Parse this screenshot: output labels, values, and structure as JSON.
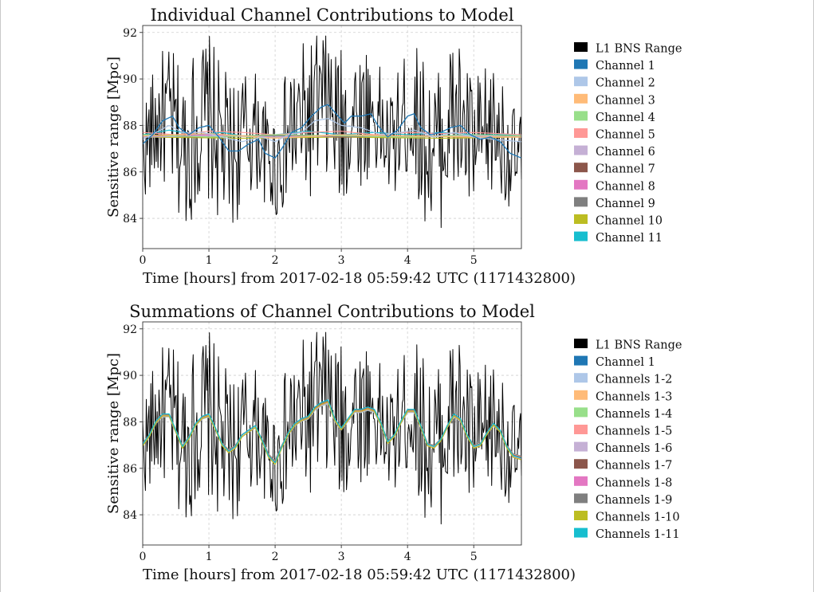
{
  "chart_data": [
    {
      "type": "line",
      "title": "Individual Channel Contributions to Model",
      "xlabel": "Time [hours] from 2017-02-18 05:59:42 UTC (1171432800)",
      "ylabel": "Sensitive range [Mpc]",
      "xlim": [
        0,
        5.72
      ],
      "ylim": [
        82.7,
        92.3
      ],
      "xticks": [
        0,
        1,
        2,
        3,
        4,
        5
      ],
      "yticks": [
        84,
        86,
        88,
        90,
        92
      ],
      "grid": true,
      "legend_position": "right",
      "baseline": 87.55,
      "series": [
        {
          "name": "L1 BNS Range",
          "color": "#000000"
        },
        {
          "name": "Channel 1",
          "color": "#1f77b4",
          "points": [
            [
              0,
              87.2
            ],
            [
              0.15,
              87.6
            ],
            [
              0.3,
              88.2
            ],
            [
              0.45,
              88.4
            ],
            [
              0.55,
              87.9
            ],
            [
              0.7,
              87.6
            ],
            [
              0.85,
              87.9
            ],
            [
              1.0,
              88.0
            ],
            [
              1.15,
              87.5
            ],
            [
              1.3,
              86.9
            ],
            [
              1.45,
              86.9
            ],
            [
              1.6,
              87.2
            ],
            [
              1.75,
              87.4
            ],
            [
              1.85,
              86.8
            ],
            [
              2.0,
              86.6
            ],
            [
              2.1,
              87.0
            ],
            [
              2.25,
              87.7
            ],
            [
              2.4,
              87.9
            ],
            [
              2.55,
              88.4
            ],
            [
              2.7,
              88.8
            ],
            [
              2.8,
              88.9
            ],
            [
              2.95,
              88.4
            ],
            [
              3.05,
              88.1
            ],
            [
              3.15,
              88.4
            ],
            [
              3.3,
              88.4
            ],
            [
              3.45,
              88.5
            ],
            [
              3.55,
              88.0
            ],
            [
              3.7,
              87.5
            ],
            [
              3.85,
              87.8
            ],
            [
              4.0,
              88.4
            ],
            [
              4.1,
              88.5
            ],
            [
              4.2,
              87.9
            ],
            [
              4.35,
              87.6
            ],
            [
              4.5,
              87.7
            ],
            [
              4.65,
              87.9
            ],
            [
              4.8,
              88.0
            ],
            [
              4.95,
              87.6
            ],
            [
              5.1,
              87.4
            ],
            [
              5.25,
              87.5
            ],
            [
              5.4,
              87.3
            ],
            [
              5.55,
              86.8
            ],
            [
              5.72,
              86.6
            ]
          ]
        },
        {
          "name": "Channel 2",
          "color": "#aec7e8",
          "points": [
            [
              0,
              87.4
            ],
            [
              0.2,
              87.7
            ],
            [
              0.4,
              88.0
            ],
            [
              0.6,
              87.7
            ],
            [
              0.9,
              87.7
            ],
            [
              1.2,
              87.5
            ],
            [
              1.5,
              87.3
            ],
            [
              1.8,
              87.5
            ],
            [
              2.0,
              87.3
            ],
            [
              2.2,
              87.6
            ],
            [
              2.4,
              87.7
            ],
            [
              2.6,
              88.2
            ],
            [
              2.8,
              88.3
            ],
            [
              3.0,
              88.0
            ],
            [
              3.3,
              87.9
            ],
            [
              3.6,
              87.6
            ],
            [
              3.9,
              87.7
            ],
            [
              4.1,
              87.8
            ],
            [
              4.4,
              87.5
            ],
            [
              4.7,
              87.7
            ],
            [
              5.0,
              87.5
            ],
            [
              5.3,
              87.4
            ],
            [
              5.72,
              87.3
            ]
          ]
        },
        {
          "name": "Channel 3",
          "color": "#ffbb78",
          "points": [
            [
              0,
              87.55
            ],
            [
              1.0,
              87.65
            ],
            [
              2.0,
              87.45
            ],
            [
              3.0,
              87.6
            ],
            [
              4.0,
              87.55
            ],
            [
              5.0,
              87.5
            ],
            [
              5.72,
              87.5
            ]
          ]
        },
        {
          "name": "Channel 4",
          "color": "#98df8a",
          "points": [
            [
              0,
              87.6
            ],
            [
              1.0,
              87.5
            ],
            [
              2.0,
              87.6
            ],
            [
              3.0,
              87.55
            ],
            [
              4.0,
              87.5
            ],
            [
              5.0,
              87.6
            ],
            [
              5.72,
              87.55
            ]
          ]
        },
        {
          "name": "Channel 5",
          "color": "#ff9896",
          "points": [
            [
              0,
              87.7
            ],
            [
              0.5,
              87.6
            ],
            [
              1.0,
              87.75
            ],
            [
              1.5,
              87.7
            ],
            [
              2.0,
              87.6
            ],
            [
              2.5,
              87.7
            ],
            [
              3.0,
              87.75
            ],
            [
              3.5,
              87.6
            ],
            [
              4.0,
              87.7
            ],
            [
              4.5,
              87.65
            ],
            [
              5.0,
              87.7
            ],
            [
              5.72,
              87.6
            ]
          ]
        },
        {
          "name": "Channel 6",
          "color": "#c5b0d5",
          "points": [
            [
              0,
              87.5
            ],
            [
              1.0,
              87.55
            ],
            [
              2.0,
              87.5
            ],
            [
              3.0,
              87.55
            ],
            [
              4.0,
              87.5
            ],
            [
              5.0,
              87.55
            ],
            [
              5.72,
              87.5
            ]
          ]
        },
        {
          "name": "Channel 7",
          "color": "#8c564b",
          "points": [
            [
              0,
              87.55
            ],
            [
              1.0,
              87.5
            ],
            [
              2.0,
              87.6
            ],
            [
              3.0,
              87.5
            ],
            [
              4.0,
              87.55
            ],
            [
              5.0,
              87.5
            ],
            [
              5.72,
              87.55
            ]
          ]
        },
        {
          "name": "Channel 8",
          "color": "#e377c2",
          "points": [
            [
              0,
              87.5
            ],
            [
              1.0,
              87.6
            ],
            [
              2.0,
              87.5
            ],
            [
              3.0,
              87.6
            ],
            [
              4.0,
              87.5
            ],
            [
              5.0,
              87.6
            ],
            [
              5.72,
              87.5
            ]
          ]
        },
        {
          "name": "Channel 9",
          "color": "#7f7f7f",
          "points": [
            [
              0,
              87.55
            ],
            [
              2.0,
              87.55
            ],
            [
              4.0,
              87.55
            ],
            [
              5.72,
              87.55
            ]
          ]
        },
        {
          "name": "Channel 10",
          "color": "#bcbd22",
          "points": [
            [
              0,
              87.5
            ],
            [
              1.5,
              87.45
            ],
            [
              3.0,
              87.5
            ],
            [
              4.5,
              87.45
            ],
            [
              5.72,
              87.5
            ]
          ]
        },
        {
          "name": "Channel 11",
          "color": "#17becf",
          "points": [
            [
              0,
              87.6
            ],
            [
              0.4,
              87.8
            ],
            [
              0.8,
              87.6
            ],
            [
              1.2,
              87.7
            ],
            [
              1.6,
              87.5
            ],
            [
              2.0,
              87.6
            ],
            [
              2.5,
              87.75
            ],
            [
              3.0,
              87.6
            ],
            [
              3.5,
              87.7
            ],
            [
              4.0,
              87.6
            ],
            [
              4.5,
              87.7
            ],
            [
              5.0,
              87.6
            ],
            [
              5.72,
              87.6
            ]
          ]
        }
      ]
    },
    {
      "type": "line",
      "title": "Summations of Channel Contributions to Model",
      "xlabel": "Time [hours] from 2017-02-18 05:59:42 UTC (1171432800)",
      "ylabel": "Sensitive range [Mpc]",
      "xlim": [
        0,
        5.72
      ],
      "ylim": [
        82.7,
        92.3
      ],
      "xticks": [
        0,
        1,
        2,
        3,
        4,
        5
      ],
      "yticks": [
        84,
        86,
        88,
        90,
        92
      ],
      "grid": true,
      "legend_position": "right",
      "series": [
        {
          "name": "L1 BNS Range",
          "color": "#000000"
        },
        {
          "name": "Channel 1",
          "color": "#1f77b4"
        },
        {
          "name": "Channels 1-2",
          "color": "#aec7e8"
        },
        {
          "name": "Channels 1-3",
          "color": "#ffbb78"
        },
        {
          "name": "Channels 1-4",
          "color": "#98df8a"
        },
        {
          "name": "Channels 1-5",
          "color": "#ff9896"
        },
        {
          "name": "Channels 1-6",
          "color": "#c5b0d5"
        },
        {
          "name": "Channels 1-7",
          "color": "#8c564b"
        },
        {
          "name": "Channels 1-8",
          "color": "#e377c2"
        },
        {
          "name": "Channels 1-9",
          "color": "#7f7f7f"
        },
        {
          "name": "Channels 1-10",
          "color": "#bcbd22"
        },
        {
          "name": "Channels 1-11",
          "color": "#17becf"
        }
      ],
      "model_points": [
        [
          0,
          87.0
        ],
        [
          0.1,
          87.4
        ],
        [
          0.2,
          88.0
        ],
        [
          0.3,
          88.3
        ],
        [
          0.4,
          88.3
        ],
        [
          0.5,
          87.6
        ],
        [
          0.6,
          86.9
        ],
        [
          0.7,
          87.3
        ],
        [
          0.8,
          87.9
        ],
        [
          0.9,
          88.2
        ],
        [
          1.0,
          88.3
        ],
        [
          1.1,
          87.7
        ],
        [
          1.2,
          87.0
        ],
        [
          1.3,
          86.7
        ],
        [
          1.4,
          86.9
        ],
        [
          1.5,
          87.4
        ],
        [
          1.6,
          87.6
        ],
        [
          1.7,
          87.8
        ],
        [
          1.8,
          87.2
        ],
        [
          1.9,
          86.5
        ],
        [
          2.0,
          86.2
        ],
        [
          2.1,
          86.9
        ],
        [
          2.2,
          87.5
        ],
        [
          2.3,
          87.9
        ],
        [
          2.4,
          88.1
        ],
        [
          2.5,
          88.2
        ],
        [
          2.6,
          88.6
        ],
        [
          2.7,
          88.8
        ],
        [
          2.8,
          88.9
        ],
        [
          2.9,
          88.1
        ],
        [
          3.0,
          87.7
        ],
        [
          3.1,
          88.1
        ],
        [
          3.2,
          88.5
        ],
        [
          3.3,
          88.5
        ],
        [
          3.4,
          88.6
        ],
        [
          3.5,
          88.5
        ],
        [
          3.6,
          87.9
        ],
        [
          3.7,
          87.1
        ],
        [
          3.8,
          87.4
        ],
        [
          3.9,
          88.0
        ],
        [
          4.0,
          88.5
        ],
        [
          4.1,
          88.5
        ],
        [
          4.2,
          87.8
        ],
        [
          4.3,
          87.0
        ],
        [
          4.4,
          86.9
        ],
        [
          4.5,
          87.2
        ],
        [
          4.6,
          87.8
        ],
        [
          4.7,
          88.3
        ],
        [
          4.8,
          88.1
        ],
        [
          4.9,
          87.4
        ],
        [
          5.0,
          86.9
        ],
        [
          5.1,
          87.0
        ],
        [
          5.2,
          87.5
        ],
        [
          5.3,
          87.9
        ],
        [
          5.4,
          87.6
        ],
        [
          5.5,
          86.9
        ],
        [
          5.6,
          86.5
        ],
        [
          5.72,
          86.4
        ]
      ]
    }
  ]
}
